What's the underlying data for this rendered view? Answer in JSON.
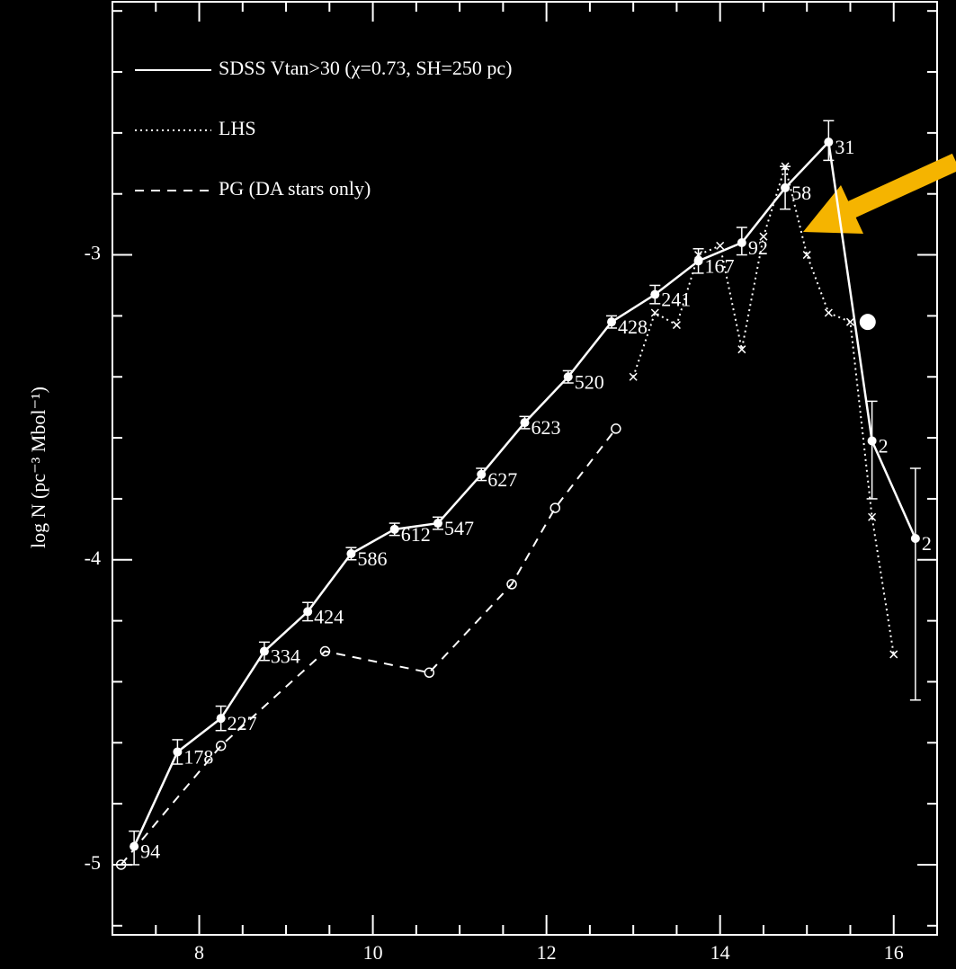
{
  "chart_data": {
    "type": "line",
    "ylabel": "log N (pc⁻³ Mbol⁻¹)",
    "xlim": [
      7,
      16.5
    ],
    "ylim": [
      -5.23,
      -2.17
    ],
    "xticks": [
      8,
      10,
      12,
      14,
      16
    ],
    "yticks": [
      -3,
      -4,
      -5
    ],
    "xminorticks": [
      7.5,
      8.5,
      9,
      9.5,
      10.5,
      11,
      11.5,
      12.5,
      13,
      13.5,
      14.5,
      15,
      15.5,
      16.5
    ],
    "yminorticks": [
      -2.2,
      -2.4,
      -2.6,
      -2.8,
      -3.2,
      -3.4,
      -3.6,
      -3.8,
      -4.2,
      -4.4,
      -4.6,
      -4.8,
      -5.2
    ],
    "legend": "upper left",
    "series": [
      {
        "name": "SDSS Vtan>30 (χ=0.73, SH=250 pc)",
        "color": "#ffffff",
        "style": "solid",
        "marker": "dot",
        "x": [
          7.25,
          7.75,
          8.25,
          8.75,
          9.25,
          9.75,
          10.25,
          10.75,
          11.25,
          11.75,
          12.25,
          12.75,
          13.25,
          13.75,
          14.25,
          14.75,
          15.25,
          15.75,
          16.25
        ],
        "values": [
          -4.94,
          -4.63,
          -4.52,
          -4.3,
          -4.17,
          -3.98,
          -3.9,
          -3.88,
          -3.72,
          -3.55,
          -3.4,
          -3.22,
          -3.13,
          -3.02,
          -2.96,
          -2.78,
          -2.63,
          -3.61,
          -3.93
        ],
        "error_low": [
          0.06,
          0.04,
          0.04,
          0.03,
          0.03,
          0.02,
          0.02,
          0.02,
          0.02,
          0.02,
          0.02,
          0.02,
          0.03,
          0.04,
          0.04,
          0.07,
          0.06,
          0.19,
          0.53
        ],
        "error_high": [
          0.05,
          0.04,
          0.04,
          0.03,
          0.03,
          0.02,
          0.02,
          0.02,
          0.02,
          0.02,
          0.02,
          0.02,
          0.03,
          0.04,
          0.05,
          0.07,
          0.07,
          0.13,
          0.23
        ],
        "counts": [
          94,
          178,
          227,
          334,
          424,
          586,
          612,
          547,
          627,
          623,
          520,
          428,
          241,
          167,
          92,
          58,
          31,
          2,
          2
        ]
      },
      {
        "name": "LHS",
        "color": "#ffffff",
        "style": "dotted",
        "marker": "cross",
        "x": [
          13.0,
          13.25,
          13.5,
          13.75,
          14.0,
          14.25,
          14.5,
          14.75,
          15.0,
          15.25,
          15.5,
          15.75,
          16.0
        ],
        "values": [
          -3.4,
          -3.19,
          -3.23,
          -3.0,
          -2.97,
          -3.31,
          -2.94,
          -2.71,
          -3.0,
          -3.19,
          -3.22,
          -3.86,
          -4.31
        ]
      },
      {
        "name": "PG (DA stars only)",
        "color": "#ffffff",
        "style": "dashed",
        "marker": "circle",
        "x": [
          7.1,
          8.25,
          9.45,
          10.65,
          11.6,
          12.1,
          12.8
        ],
        "values": [
          -5.0,
          -4.61,
          -4.3,
          -4.37,
          -4.08,
          -3.83,
          -3.57
        ]
      }
    ],
    "highlight_point": {
      "x": 15.7,
      "y": -3.22
    }
  }
}
